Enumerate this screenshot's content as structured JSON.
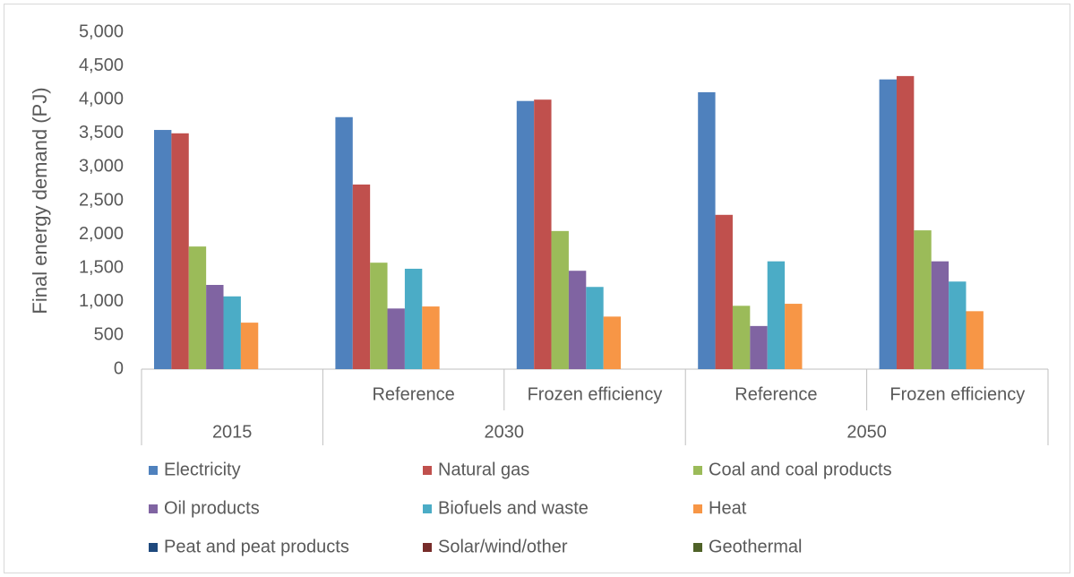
{
  "chart_data": {
    "type": "bar",
    "y_label": "Final energy demand (PJ)",
    "category_groups": [
      {
        "label": "2015",
        "categories": [
          null
        ]
      },
      {
        "label": "2030",
        "categories": [
          "Reference",
          "Frozen efficiency"
        ]
      },
      {
        "label": "2050",
        "categories": [
          "Reference",
          "Frozen efficiency"
        ]
      }
    ],
    "series": [
      {
        "name": "Electricity",
        "color": "#4f81bd",
        "values": [
          3550,
          3740,
          3980,
          4110,
          4300
        ]
      },
      {
        "name": "Natural gas",
        "color": "#c0504d",
        "values": [
          3500,
          2740,
          4000,
          2290,
          4350
        ]
      },
      {
        "name": "Coal and coal products",
        "color": "#9bbb59",
        "values": [
          1820,
          1580,
          2050,
          940,
          2060
        ]
      },
      {
        "name": "Oil products",
        "color": "#8064a2",
        "values": [
          1250,
          900,
          1460,
          640,
          1600
        ]
      },
      {
        "name": "Biofuels and waste",
        "color": "#4bacc6",
        "values": [
          1080,
          1490,
          1220,
          1600,
          1300
        ]
      },
      {
        "name": "Heat",
        "color": "#f79646",
        "values": [
          690,
          930,
          780,
          970,
          860
        ]
      },
      {
        "name": "Peat and peat products",
        "color": "#1f497d",
        "values": [
          0,
          0,
          0,
          0,
          0
        ]
      },
      {
        "name": "Solar/wind/other",
        "color": "#772c2a",
        "values": [
          0,
          0,
          0,
          0,
          0
        ]
      },
      {
        "name": "Geothermal",
        "color": "#4f6228",
        "values": [
          0,
          0,
          0,
          0,
          0
        ]
      }
    ],
    "ylim": [
      0,
      5000
    ],
    "yticks": [
      0,
      {
        "value": 500,
        "label": "500"
      },
      {
        "value": 1000,
        "label": "1,000"
      },
      {
        "value": 1500,
        "label": "1,500"
      },
      {
        "value": 2000,
        "label": "2,000"
      },
      {
        "value": 2500,
        "label": "2,500"
      },
      {
        "value": 3000,
        "label": "3,000"
      },
      {
        "value": 3500,
        "label": "3,500"
      },
      {
        "value": 4000,
        "label": "4,000"
      },
      {
        "value": 4500,
        "label": "4,500"
      },
      {
        "value": 5000,
        "label": "5,000"
      }
    ],
    "grid": false,
    "legend": "bottom"
  }
}
